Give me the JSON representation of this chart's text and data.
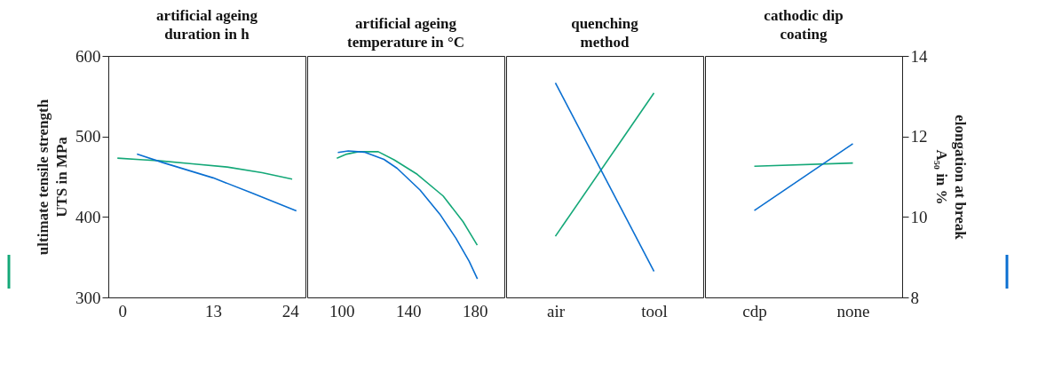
{
  "chart_data": [
    {
      "type": "line",
      "title": "artificial ageing\nduration in h",
      "ylabel": "ultimate tensile strength\nUTS in MPa",
      "xlim": [
        -2,
        26.2
      ],
      "xticks": [
        0,
        13,
        24
      ],
      "ylim": [
        300,
        600
      ],
      "yticks": [
        300,
        400,
        500,
        600
      ],
      "y2lim": [
        8,
        14
      ],
      "grid": false,
      "series": [
        {
          "color": "#14a878",
          "x": [
            -0.7,
            3,
            5,
            10,
            15,
            20,
            24.3
          ],
          "values": [
            473,
            471,
            470,
            466,
            462,
            455,
            447
          ]
        },
        {
          "color": "#0a6fd1",
          "axis": "y2",
          "x": [
            2.1,
            5.8,
            13,
            18.5,
            24.9
          ],
          "values": [
            11.56,
            11.35,
            10.97,
            10.6,
            10.15
          ]
        }
      ]
    },
    {
      "type": "line",
      "title": "artificial ageing\ntemperature in °C",
      "xlim": [
        79.3,
        197.8
      ],
      "xticks": [
        100,
        140,
        180
      ],
      "ylim": [
        300,
        600
      ],
      "y2lim": [
        8,
        14
      ],
      "tick_labels": "x",
      "grid": false,
      "series": [
        {
          "color": "#14a878",
          "x": [
            97.1,
            103,
            110,
            122,
            131.5,
            145.4,
            161,
            173,
            181.5
          ],
          "values": [
            473,
            478,
            481,
            481,
            471,
            453,
            426,
            394,
            365
          ]
        },
        {
          "color": "#0a6fd1",
          "axis": "y2",
          "x": [
            97.7,
            104,
            113.6,
            125.4,
            133.3,
            147.1,
            159,
            168.7,
            176.6,
            181.6
          ],
          "values": [
            11.6,
            11.64,
            11.61,
            11.43,
            11.21,
            10.67,
            10.07,
            9.47,
            8.9,
            8.46
          ]
        }
      ]
    },
    {
      "type": "line",
      "title": "quenching\nmethod",
      "categories": [
        "air",
        "tool"
      ],
      "ylim": [
        300,
        600
      ],
      "y2lim": [
        8,
        14
      ],
      "tick_labels": "x",
      "grid": false,
      "series": [
        {
          "color": "#14a878",
          "values": [
            376,
            554
          ]
        },
        {
          "color": "#0a6fd1",
          "axis": "y2",
          "values": [
            13.33,
            8.65
          ]
        }
      ]
    },
    {
      "type": "line",
      "title": "cathodic dip\ncoating",
      "y2label": "elongation at break\nA₅₀ in %",
      "categories": [
        "cdp",
        "none"
      ],
      "ylim": [
        300,
        600
      ],
      "y2lim": [
        8,
        14
      ],
      "y2ticks": [
        8,
        10,
        12,
        14
      ],
      "grid": false,
      "series": [
        {
          "color": "#14a878",
          "values": [
            463,
            467
          ]
        },
        {
          "color": "#0a6fd1",
          "axis": "y2",
          "values": [
            10.16,
            11.82
          ]
        }
      ]
    }
  ]
}
